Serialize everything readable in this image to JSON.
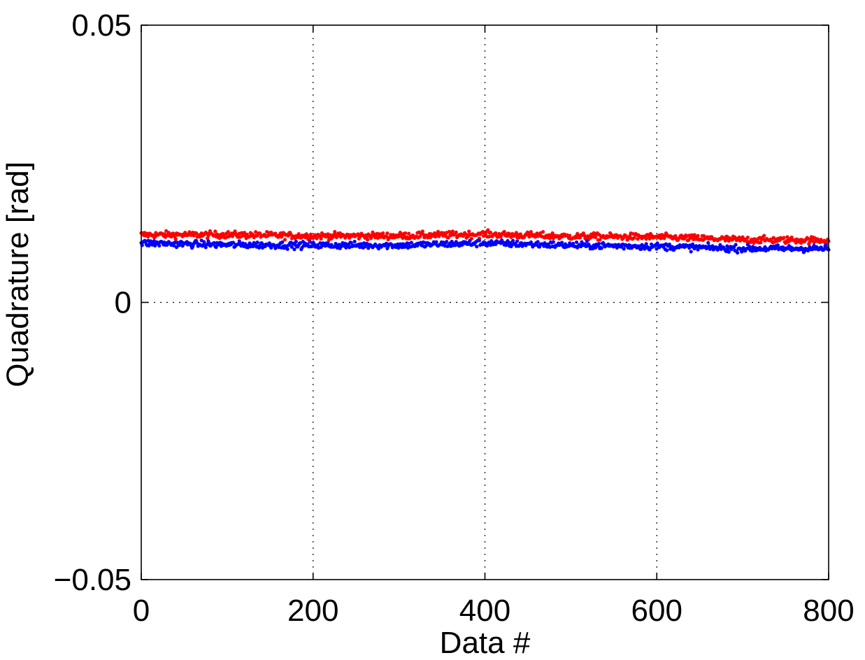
{
  "chart_data": {
    "type": "scatter",
    "title": "",
    "xlabel": "Data #",
    "ylabel": "Quadrature [rad]",
    "xlim": [
      0,
      800
    ],
    "ylim": [
      -0.05,
      0.05
    ],
    "grid": true,
    "legend": "none",
    "xticks": [
      0,
      200,
      400,
      600,
      800
    ],
    "xtick_labels": [
      "0",
      "200",
      "400",
      "600",
      "800"
    ],
    "yticks": [
      -0.05,
      0,
      0.05
    ],
    "ytick_labels": [
      "−0.05",
      "0",
      "0.05"
    ],
    "x_range": [
      0,
      800
    ],
    "point_count": 800,
    "series": [
      {
        "color": "#ff0000",
        "x_knots": [
          0,
          100,
          200,
          300,
          400,
          500,
          600,
          700,
          800
        ],
        "y_knots": [
          0.0122,
          0.0122,
          0.012,
          0.012,
          0.0123,
          0.0119,
          0.0118,
          0.0113,
          0.0112
        ],
        "noise": 0.0003
      },
      {
        "color": "#0000ff",
        "x_knots": [
          0,
          100,
          200,
          300,
          400,
          500,
          600,
          700,
          800
        ],
        "y_knots": [
          0.0107,
          0.0104,
          0.0103,
          0.0103,
          0.0107,
          0.0103,
          0.0101,
          0.0097,
          0.0097
        ],
        "noise": 0.0003
      }
    ]
  }
}
